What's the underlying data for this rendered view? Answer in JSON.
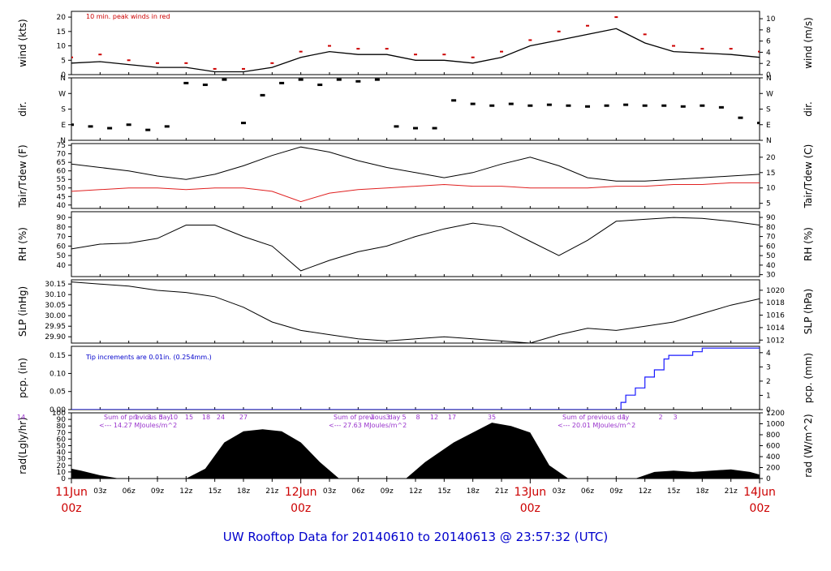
{
  "footer": {
    "title": "UW Rooftop Data for 20140610  to  20140613 @ 23:57:32  (UTC)"
  },
  "time_axis": {
    "hour_ticks": [
      "03z",
      "06z",
      "09z",
      "12z",
      "15z",
      "18z",
      "21z",
      "03z",
      "06z",
      "09z",
      "12z",
      "15z",
      "18z",
      "21z",
      "03z",
      "06z",
      "09z",
      "12z",
      "15z",
      "18z",
      "21z"
    ],
    "day_labels": [
      {
        "date": "11Jun",
        "hour": "00z"
      },
      {
        "date": "12Jun",
        "hour": "00z"
      },
      {
        "date": "13Jun",
        "hour": "00z"
      },
      {
        "date": "14Jun",
        "hour": "00z"
      }
    ]
  },
  "colors": {
    "peak": "#cc0000",
    "dew": "#e02020",
    "precip": "#1a1aff",
    "note_precip": "#0000cc",
    "radnote": "#9933cc",
    "day": "#cc0000",
    "footer": "#0000cc"
  },
  "chart_data": [
    {
      "type": "line",
      "id": "wind",
      "ylabel_left": "wind (kts)",
      "ylabel_right": "wind (m/s)",
      "yticks_left": [
        0,
        5,
        10,
        15,
        20
      ],
      "yticks_right": [
        0,
        2,
        4,
        6,
        8,
        10
      ],
      "ylim": [
        0,
        22
      ],
      "annotation": "10 min. peak winds in red",
      "x_hours": [
        0,
        3,
        6,
        9,
        12,
        15,
        18,
        21,
        24,
        27,
        30,
        33,
        36,
        39,
        42,
        45,
        48,
        51,
        54,
        57,
        60,
        63,
        66,
        69,
        72
      ],
      "series": [
        {
          "values": [
            4,
            4.5,
            3.5,
            2.5,
            2.5,
            1,
            1,
            2.5,
            6,
            8,
            7,
            7,
            5,
            5,
            4,
            6,
            10,
            12,
            14,
            16,
            11,
            8,
            7.5,
            7,
            6
          ]
        },
        {
          "values": [
            6,
            7,
            5,
            4,
            4,
            2,
            2,
            4,
            8,
            10,
            9,
            9,
            7,
            7,
            6,
            8,
            12,
            15,
            17,
            20,
            14,
            10,
            9,
            9,
            8
          ]
        }
      ]
    },
    {
      "type": "scatter",
      "id": "dir",
      "ylabel_left": "dir.",
      "ylabel_right": "dir.",
      "yticks_left": [
        "N",
        "E",
        "S",
        "W",
        "N"
      ],
      "yticks_right": [
        "N",
        "E",
        "S",
        "W",
        "N"
      ],
      "ylim": [
        0,
        360
      ],
      "x_hours": [
        0,
        2,
        4,
        6,
        8,
        10,
        12,
        14,
        16,
        18,
        20,
        22,
        24,
        26,
        28,
        30,
        32,
        34,
        36,
        38,
        40,
        42,
        44,
        46,
        48,
        50,
        52,
        54,
        56,
        58,
        60,
        62,
        64,
        66,
        68,
        70,
        72
      ],
      "values": [
        90,
        80,
        70,
        90,
        60,
        80,
        330,
        320,
        350,
        100,
        260,
        330,
        350,
        320,
        350,
        340,
        350,
        80,
        70,
        70,
        230,
        210,
        200,
        210,
        200,
        205,
        200,
        195,
        200,
        205,
        200,
        200,
        195,
        200,
        190,
        130,
        100
      ]
    },
    {
      "type": "line",
      "id": "temp",
      "ylabel_left": "Tair/Tdew (F)",
      "ylabel_right": "Tair/Tdew (C)",
      "yticks_left": [
        40,
        45,
        50,
        55,
        60,
        65,
        70,
        75
      ],
      "yticks_right": [
        5,
        10,
        15,
        20
      ],
      "ylim": [
        38,
        76
      ],
      "x_hours": [
        0,
        3,
        6,
        9,
        12,
        15,
        18,
        21,
        24,
        27,
        30,
        33,
        36,
        39,
        42,
        45,
        48,
        51,
        54,
        57,
        60,
        63,
        66,
        69,
        72
      ],
      "series": [
        {
          "values": [
            64,
            62,
            60,
            57,
            55,
            58,
            63,
            69,
            74,
            71,
            66,
            62,
            59,
            56,
            59,
            64,
            68,
            63,
            56,
            54,
            54,
            55,
            56,
            57,
            58
          ],
          "color": "air"
        },
        {
          "values": [
            48,
            49,
            50,
            50,
            49,
            50,
            50,
            48,
            42,
            47,
            49,
            50,
            51,
            52,
            51,
            51,
            50,
            50,
            50,
            51,
            51,
            52,
            52,
            53,
            53
          ],
          "color": "dew"
        }
      ]
    },
    {
      "type": "line",
      "id": "rh",
      "ylabel_left": "RH (%)",
      "ylabel_right": "RH (%)",
      "yticks_left": [
        40,
        50,
        60,
        70,
        80,
        90
      ],
      "yticks_right": [
        30,
        40,
        50,
        60,
        70,
        80,
        90
      ],
      "ylim": [
        28,
        96
      ],
      "x_hours": [
        0,
        3,
        6,
        9,
        12,
        15,
        18,
        21,
        24,
        27,
        30,
        33,
        36,
        39,
        42,
        45,
        48,
        51,
        54,
        57,
        60,
        63,
        66,
        69,
        72
      ],
      "values": [
        57,
        62,
        63,
        68,
        82,
        82,
        70,
        60,
        34,
        45,
        54,
        60,
        70,
        78,
        84,
        80,
        65,
        50,
        66,
        86,
        88,
        90,
        89,
        86,
        82
      ]
    },
    {
      "type": "line",
      "id": "slp",
      "ylabel_left": "SLP (inHg)",
      "ylabel_right": "SLP (hPa)",
      "yticks_left": [
        "29.90",
        "29.95",
        "30.00",
        "30.05",
        "30.10",
        "30.15"
      ],
      "yticks_right": [
        1012,
        1014,
        1016,
        1018,
        1020,
        1022
      ],
      "ylim": [
        29.87,
        30.17
      ],
      "x_hours": [
        0,
        3,
        6,
        9,
        12,
        15,
        18,
        21,
        24,
        27,
        30,
        33,
        36,
        39,
        42,
        45,
        48,
        51,
        54,
        57,
        60,
        63,
        66,
        69,
        72
      ],
      "values": [
        30.16,
        30.15,
        30.14,
        30.12,
        30.11,
        30.09,
        30.04,
        29.97,
        29.93,
        29.91,
        29.89,
        29.88,
        29.89,
        29.9,
        29.89,
        29.88,
        29.87,
        29.91,
        29.94,
        29.93,
        29.95,
        29.97,
        30.01,
        30.05,
        30.08
      ]
    },
    {
      "type": "line",
      "id": "pcp",
      "ylabel_left": "pcp. (in)",
      "ylabel_right": "pcp. (mm)",
      "yticks_left": [
        "0.00",
        "0.05",
        "0.10",
        "0.15"
      ],
      "yticks_right": [
        0,
        1,
        2,
        3,
        4
      ],
      "ylim": [
        0,
        0.175
      ],
      "annotation": "Tip increments are 0.01in. (0.254mm.)",
      "x_hours": [
        0,
        57,
        57.5,
        58,
        59,
        60,
        61,
        62,
        62.5,
        63,
        65,
        66,
        72
      ],
      "values": [
        0,
        0,
        0.02,
        0.04,
        0.06,
        0.09,
        0.11,
        0.14,
        0.15,
        0.15,
        0.16,
        0.17,
        0.17
      ]
    },
    {
      "type": "area",
      "id": "rad",
      "ylabel_left": "rad(Lgly/hr)",
      "ylabel_right": "rad (W/m^2)",
      "yticks_left": [
        0,
        10,
        20,
        30,
        40,
        50,
        60,
        70,
        80,
        90,
        100
      ],
      "yticks_right": [
        0,
        200,
        400,
        600,
        800,
        1000,
        1200
      ],
      "ylim": [
        0,
        100
      ],
      "x_hours": [
        0,
        1,
        3,
        5,
        12,
        14,
        16,
        18,
        20,
        22,
        24,
        26,
        28,
        35,
        37,
        38,
        40,
        42,
        44,
        46,
        48,
        50,
        52,
        59,
        61,
        63,
        65,
        67,
        69,
        71,
        72
      ],
      "values": [
        15,
        12,
        5,
        0,
        0,
        15,
        55,
        72,
        75,
        72,
        55,
        25,
        0,
        0,
        25,
        35,
        55,
        70,
        85,
        80,
        70,
        20,
        0,
        0,
        10,
        12,
        10,
        12,
        14,
        10,
        6
      ],
      "day_sums": [
        {
          "text": "Sum of previous day",
          "value": "<--- 14.27 MJoules/m^2"
        },
        {
          "text": "Sum of previous day",
          "value": "<--- 27.63 MJoules/m^2"
        },
        {
          "text": "Sum of previous day",
          "value": "<--- 20.01 MJoules/m^2"
        }
      ],
      "hour_marks": [
        "14",
        "1",
        "3",
        "5",
        "10",
        "15",
        "18",
        "24",
        "27",
        "1",
        "3",
        "5",
        "8",
        "12",
        "17",
        "35",
        "1",
        "2",
        "3"
      ]
    }
  ]
}
